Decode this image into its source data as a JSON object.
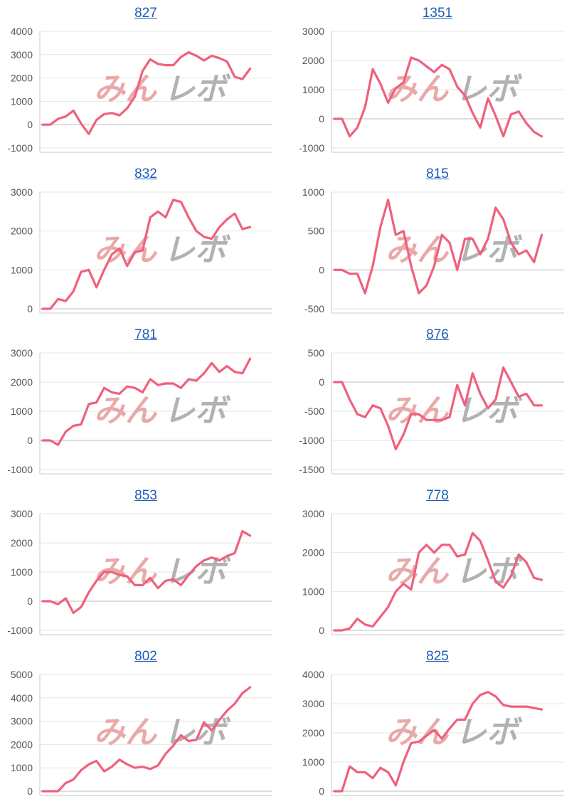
{
  "colors": {
    "line": "#f0607d",
    "grid": "#e6e6e6",
    "axis": "#c8c8c8",
    "watermark_pink": "#e8a0a0",
    "watermark_gray": "#aaaaaa"
  },
  "watermark": "みんレボ",
  "chart_data": [
    {
      "type": "line",
      "title": "827",
      "ylim": [
        -1000,
        4000
      ],
      "yticks": [
        -1000,
        0,
        1000,
        2000,
        3000,
        4000
      ],
      "values": [
        0,
        0,
        250,
        350,
        600,
        50,
        -400,
        200,
        450,
        500,
        400,
        700,
        1200,
        2300,
        2800,
        2600,
        2550,
        2550,
        2900,
        3100,
        2950,
        2750,
        2950,
        2850,
        2700,
        2050,
        1950,
        2400
      ]
    },
    {
      "type": "line",
      "title": "1351",
      "ylim": [
        -1000,
        3000
      ],
      "yticks": [
        -1000,
        0,
        1000,
        2000,
        3000
      ],
      "values": [
        0,
        0,
        -600,
        -300,
        400,
        1700,
        1200,
        550,
        1050,
        1250,
        2100,
        2000,
        1800,
        1600,
        1850,
        1700,
        1100,
        800,
        200,
        -300,
        700,
        100,
        -600,
        150,
        250,
        -150,
        -450,
        -600
      ]
    },
    {
      "type": "line",
      "title": "832",
      "ylim": [
        0,
        3000
      ],
      "yticks": [
        0,
        1000,
        2000,
        3000
      ],
      "values": [
        0,
        0,
        250,
        200,
        450,
        950,
        1000,
        550,
        1000,
        1400,
        1550,
        1100,
        1450,
        1500,
        2350,
        2500,
        2350,
        2800,
        2750,
        2350,
        2000,
        1850,
        1800,
        2100,
        2300,
        2450,
        2050,
        2100
      ]
    },
    {
      "type": "line",
      "title": "815",
      "ylim": [
        -500,
        1000
      ],
      "yticks": [
        -500,
        0,
        500,
        1000
      ],
      "values": [
        0,
        0,
        -50,
        -50,
        -300,
        50,
        550,
        900,
        450,
        500,
        50,
        -300,
        -200,
        50,
        450,
        350,
        0,
        400,
        400,
        200,
        400,
        800,
        650,
        350,
        200,
        250,
        100,
        450
      ]
    },
    {
      "type": "line",
      "title": "781",
      "ylim": [
        -1000,
        3000
      ],
      "yticks": [
        -1000,
        0,
        1000,
        2000,
        3000
      ],
      "values": [
        0,
        0,
        -150,
        300,
        500,
        550,
        1250,
        1300,
        1800,
        1650,
        1600,
        1850,
        1800,
        1650,
        2100,
        1900,
        1950,
        1950,
        1800,
        2100,
        2050,
        2300,
        2650,
        2350,
        2550,
        2350,
        2300,
        2800
      ]
    },
    {
      "type": "line",
      "title": "876",
      "ylim": [
        -1500,
        500
      ],
      "yticks": [
        -1500,
        -1000,
        -500,
        0,
        500
      ],
      "values": [
        0,
        0,
        -300,
        -550,
        -600,
        -400,
        -450,
        -750,
        -1150,
        -900,
        -550,
        -550,
        -650,
        -650,
        -650,
        -600,
        -50,
        -400,
        150,
        -200,
        -450,
        -300,
        250,
        0,
        -250,
        -200,
        -400,
        -400
      ]
    },
    {
      "type": "line",
      "title": "853",
      "ylim": [
        -1000,
        3000
      ],
      "yticks": [
        -1000,
        0,
        1000,
        2000,
        3000
      ],
      "values": [
        0,
        0,
        -100,
        100,
        -400,
        -200,
        300,
        700,
        1000,
        1000,
        900,
        850,
        550,
        550,
        800,
        450,
        700,
        750,
        550,
        900,
        1200,
        1400,
        1500,
        1400,
        1550,
        1650,
        2400,
        2250
      ]
    },
    {
      "type": "line",
      "title": "778",
      "ylim": [
        0,
        3000
      ],
      "yticks": [
        0,
        1000,
        2000,
        3000
      ],
      "values": [
        0,
        0,
        50,
        300,
        150,
        100,
        350,
        600,
        1000,
        1200,
        1050,
        2000,
        2200,
        2000,
        2200,
        2200,
        1900,
        1950,
        2500,
        2300,
        1800,
        1250,
        1100,
        1400,
        1950,
        1750,
        1350,
        1300
      ]
    },
    {
      "type": "line",
      "title": "802",
      "ylim": [
        0,
        5000
      ],
      "yticks": [
        0,
        1000,
        2000,
        3000,
        4000,
        5000
      ],
      "values": [
        0,
        0,
        0,
        350,
        500,
        900,
        1150,
        1300,
        850,
        1050,
        1350,
        1150,
        1000,
        1050,
        950,
        1100,
        1600,
        1950,
        2400,
        2150,
        2200,
        2950,
        2600,
        3050,
        3450,
        3750,
        4200,
        4450
      ]
    },
    {
      "type": "line",
      "title": "825",
      "ylim": [
        0,
        4000
      ],
      "yticks": [
        0,
        1000,
        2000,
        3000,
        4000
      ],
      "values": [
        0,
        0,
        850,
        650,
        650,
        450,
        800,
        650,
        200,
        1000,
        1650,
        1700,
        1900,
        2100,
        1800,
        2150,
        2450,
        2450,
        3000,
        3300,
        3400,
        3250,
        2950,
        2900,
        2900,
        2900,
        2850,
        2800
      ]
    }
  ]
}
